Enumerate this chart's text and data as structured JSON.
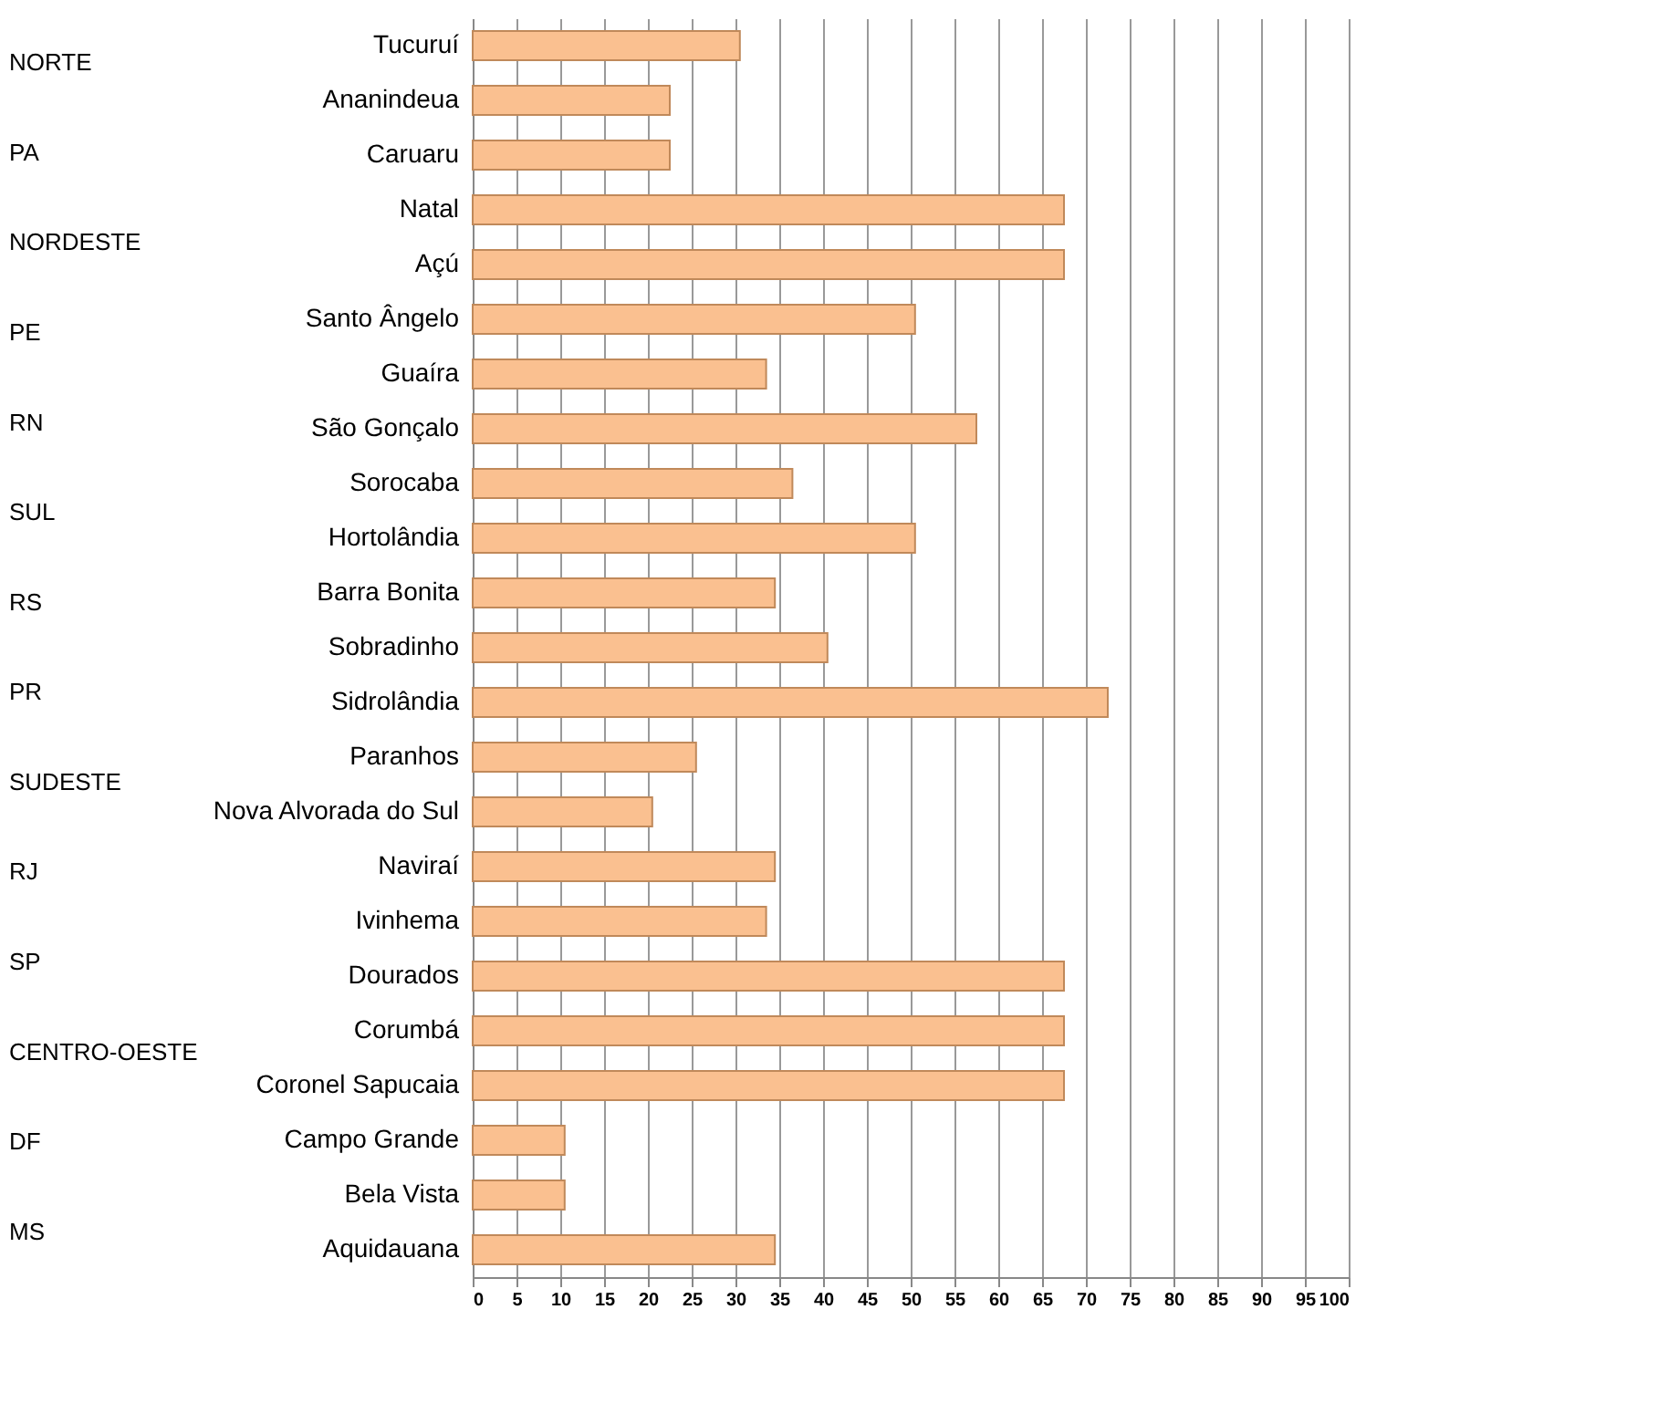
{
  "chart_data": {
    "type": "bar",
    "orientation": "horizontal",
    "categories": [
      "Tucuruí",
      "Ananindeua",
      "Caruaru",
      "Natal",
      "Açú",
      "Santo Ângelo",
      "Guaíra",
      "São Gonçalo",
      "Sorocaba",
      "Hortolândia",
      "Barra Bonita",
      "Sobradinho",
      "Sidrolândia",
      "Paranhos",
      "Nova Alvorada do Sul",
      "Naviraí",
      "Ivinhema",
      "Dourados",
      "Corumbá",
      "Coronel Sapucaia",
      "Campo Grande",
      "Bela Vista",
      "Aquidauana"
    ],
    "values": [
      30.5,
      22.5,
      22.5,
      67.5,
      67.5,
      50.5,
      33.5,
      57.5,
      36.5,
      50.5,
      34.5,
      40.5,
      72.5,
      25.5,
      20.5,
      34.5,
      33.5,
      67.5,
      67.5,
      67.5,
      10.5,
      10.5,
      34.5
    ],
    "color": "#fac090",
    "xlim": [
      0,
      100
    ],
    "xticks": [
      0,
      5,
      10,
      15,
      20,
      25,
      30,
      35,
      40,
      45,
      50,
      55,
      60,
      65,
      70,
      75,
      80,
      85,
      90,
      95,
      100
    ],
    "grid": "x",
    "annotations": [
      "NORTE",
      "PA",
      "NORDESTE",
      "PE",
      "RN",
      "SUL",
      "RS",
      "PR",
      "SUDESTE",
      "RJ",
      "SP",
      "CENTRO-OESTE",
      "DF",
      "MS"
    ]
  }
}
